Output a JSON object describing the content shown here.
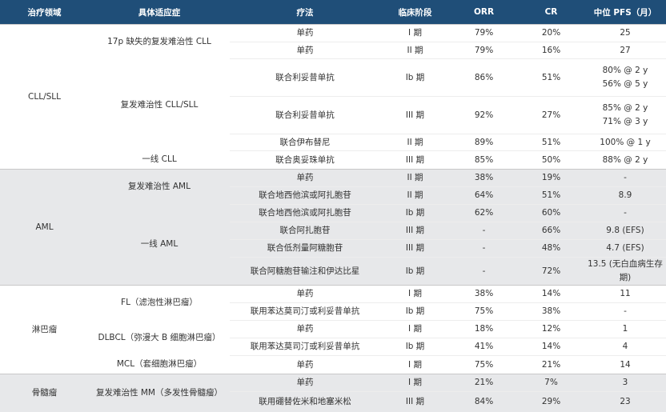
{
  "headers": [
    "治疗领域",
    "具体适应症",
    "疗法",
    "临床阶段",
    "ORR",
    "CR",
    "中位 PFS（月）"
  ],
  "sections": [
    {
      "area": "CLL/SLL",
      "indications": [
        {
          "name": "17p 缺失的复发难治性 CLL",
          "rows": [
            {
              "therapy": "单药",
              "phase": "I 期",
              "orr": "79%",
              "cr": "20%",
              "pfs": [
                "25"
              ]
            },
            {
              "therapy": "单药",
              "phase": "II 期",
              "orr": "79%",
              "cr": "16%",
              "pfs": [
                "27"
              ]
            }
          ]
        },
        {
          "name": "复发难治性 CLL/SLL",
          "rows": [
            {
              "therapy": "联合利妥昔单抗",
              "phase": "Ib 期",
              "orr": "86%",
              "cr": "51%",
              "pfs": [
                "80% @ 2 y",
                "56% @ 5 y"
              ]
            },
            {
              "therapy": "联合利妥昔单抗",
              "phase": "III 期",
              "orr": "92%",
              "cr": "27%",
              "pfs": [
                "85% @ 2 y",
                "71% @ 3 y"
              ]
            },
            {
              "therapy": "联合伊布替尼",
              "phase": "II 期",
              "orr": "89%",
              "cr": "51%",
              "pfs": [
                "100% @ 1 y"
              ]
            }
          ]
        },
        {
          "name": "一线 CLL",
          "rows": [
            {
              "therapy": "联合奥妥珠单抗",
              "phase": "III 期",
              "orr": "85%",
              "cr": "50%",
              "pfs": [
                "88% @ 2 y"
              ]
            }
          ]
        }
      ]
    },
    {
      "area": "AML",
      "indications": [
        {
          "name": "复发难治性 AML",
          "rows": [
            {
              "therapy": "单药",
              "phase": "II 期",
              "orr": "38%",
              "cr": "19%",
              "pfs": [
                "-"
              ]
            },
            {
              "therapy": "联合地西他滨或阿扎胞苷",
              "phase": "II 期",
              "orr": "64%",
              "cr": "51%",
              "pfs": [
                "8.9"
              ]
            }
          ]
        },
        {
          "name": "一线 AML",
          "rows": [
            {
              "therapy": "联合地西他滨或阿扎胞苷",
              "phase": "Ib 期",
              "orr": "62%",
              "cr": "60%",
              "pfs": [
                "-"
              ]
            },
            {
              "therapy": "联合阿扎胞苷",
              "phase": "III 期",
              "orr": "-",
              "cr": "66%",
              "pfs": [
                "9.8 (EFS)"
              ]
            },
            {
              "therapy": "联合低剂量阿糖胞苷",
              "phase": "III 期",
              "orr": "-",
              "cr": "48%",
              "pfs": [
                "4.7 (EFS)"
              ]
            },
            {
              "therapy": "联合阿糖胞苷输注和伊达比星",
              "phase": "Ib 期",
              "orr": "-",
              "cr": "72%",
              "pfs": [
                "13.5 (无白血病生存期)"
              ]
            }
          ]
        }
      ]
    },
    {
      "area": "淋巴瘤",
      "indications": [
        {
          "name": "FL（滤泡性淋巴瘤）",
          "rows": [
            {
              "therapy": "单药",
              "phase": "I 期",
              "orr": "38%",
              "cr": "14%",
              "pfs": [
                "11"
              ]
            },
            {
              "therapy": "联用苯达莫司汀或利妥昔单抗",
              "phase": "Ib 期",
              "orr": "75%",
              "cr": "38%",
              "pfs": [
                "-"
              ]
            }
          ]
        },
        {
          "name": "DLBCL（弥漫大 B 细胞淋巴瘤）",
          "rows": [
            {
              "therapy": "单药",
              "phase": "I 期",
              "orr": "18%",
              "cr": "12%",
              "pfs": [
                "1"
              ]
            },
            {
              "therapy": "联用苯达莫司汀或利妥昔单抗",
              "phase": "Ib 期",
              "orr": "41%",
              "cr": "14%",
              "pfs": [
                "4"
              ]
            }
          ]
        },
        {
          "name": "MCL（套细胞淋巴瘤）",
          "rows": [
            {
              "therapy": "单药",
              "phase": "I 期",
              "orr": "75%",
              "cr": "21%",
              "pfs": [
                "14"
              ]
            }
          ]
        }
      ]
    },
    {
      "area": "骨髓瘤",
      "indications": [
        {
          "name": "复发难治性 MM（多发性骨髓瘤）",
          "rows": [
            {
              "therapy": "单药",
              "phase": "I 期",
              "orr": "21%",
              "cr": "7%",
              "pfs": [
                "3"
              ]
            },
            {
              "therapy": "联用硼替佐米和地塞米松",
              "phase": "III 期",
              "orr": "84%",
              "cr": "29%",
              "pfs": [
                "23"
              ]
            }
          ]
        }
      ]
    }
  ]
}
